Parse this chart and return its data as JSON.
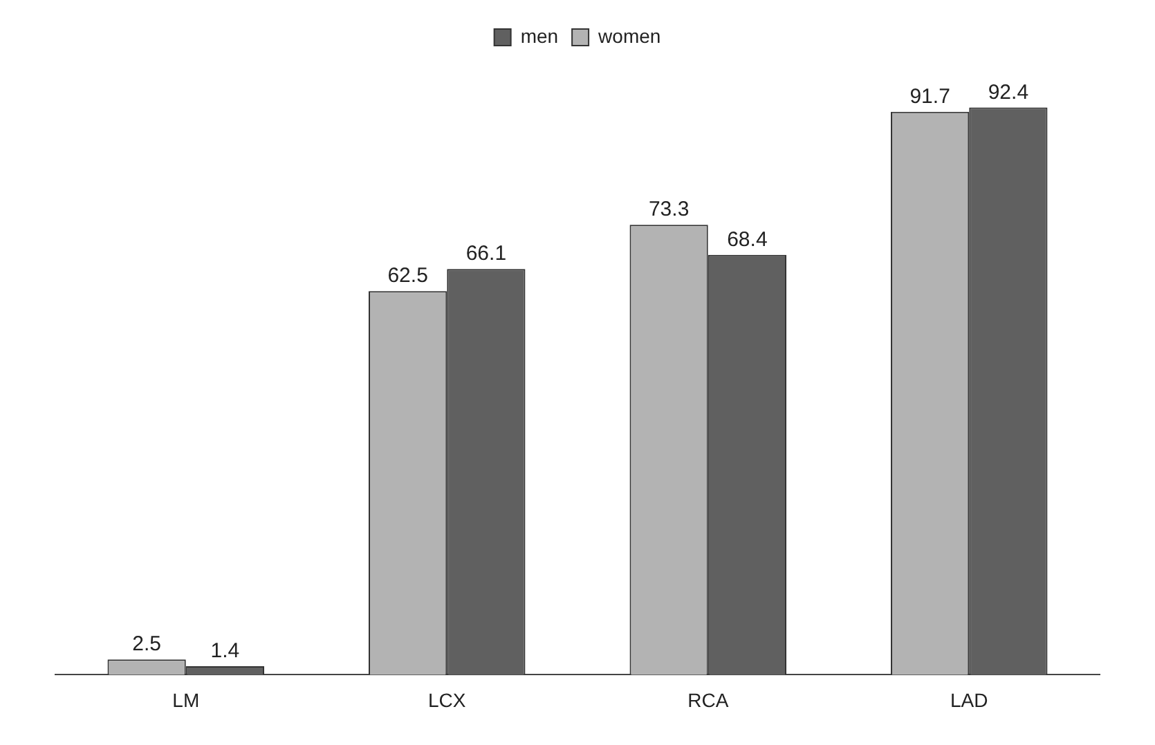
{
  "chart_data": {
    "type": "bar",
    "categories": [
      "LM",
      "LCX",
      "RCA",
      "LAD"
    ],
    "series": [
      {
        "name": "women",
        "color": "#b3b3b3",
        "values": [
          2.5,
          62.5,
          73.3,
          91.7
        ]
      },
      {
        "name": "men",
        "color": "#606060",
        "values": [
          1.4,
          66.1,
          68.4,
          92.4
        ]
      }
    ],
    "data_labels": true,
    "legend": "top",
    "grid": false,
    "tick_labels": "x"
  }
}
